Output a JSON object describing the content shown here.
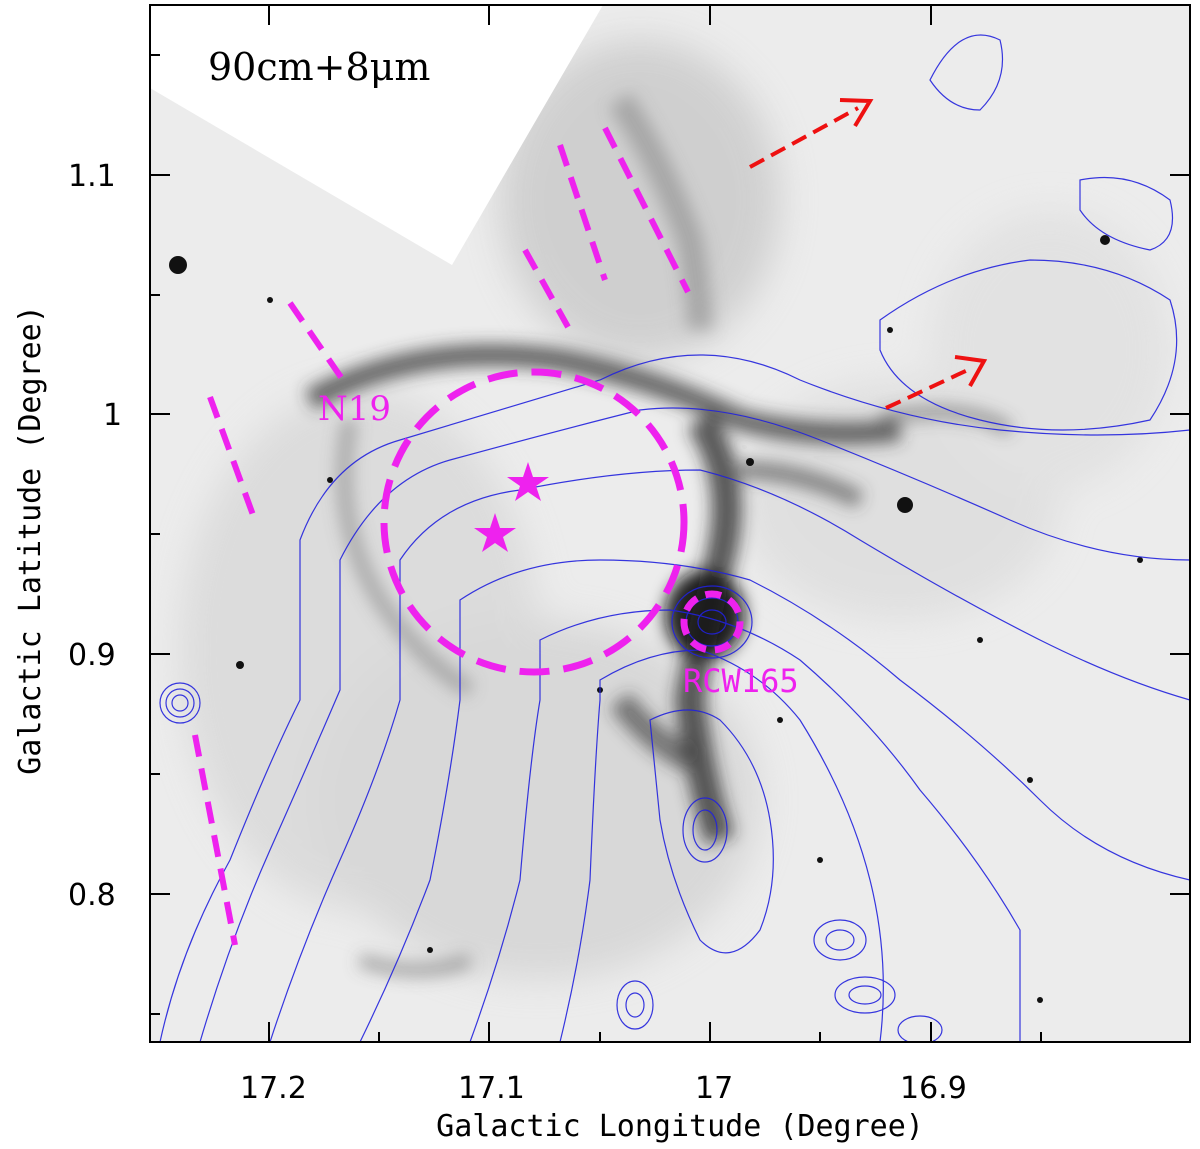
{
  "panel_label": "90cm+8μm",
  "axes": {
    "xlabel": "Galactic Longitude (Degree)",
    "ylabel": "Galactic Latitude (Degree)",
    "x_ticks": [
      "17.2",
      "17.1",
      "17",
      "16.9"
    ],
    "y_ticks": [
      "1.1",
      "1",
      "0.9",
      "0.8"
    ]
  },
  "annotations": {
    "n19_label": "N19",
    "rcw165_label": "RCW165"
  },
  "colors": {
    "contour": "#2222dd",
    "annotation": "#ee22ee",
    "arrow": "#ee1111",
    "background_grayscale": "#f2f2f2"
  }
}
